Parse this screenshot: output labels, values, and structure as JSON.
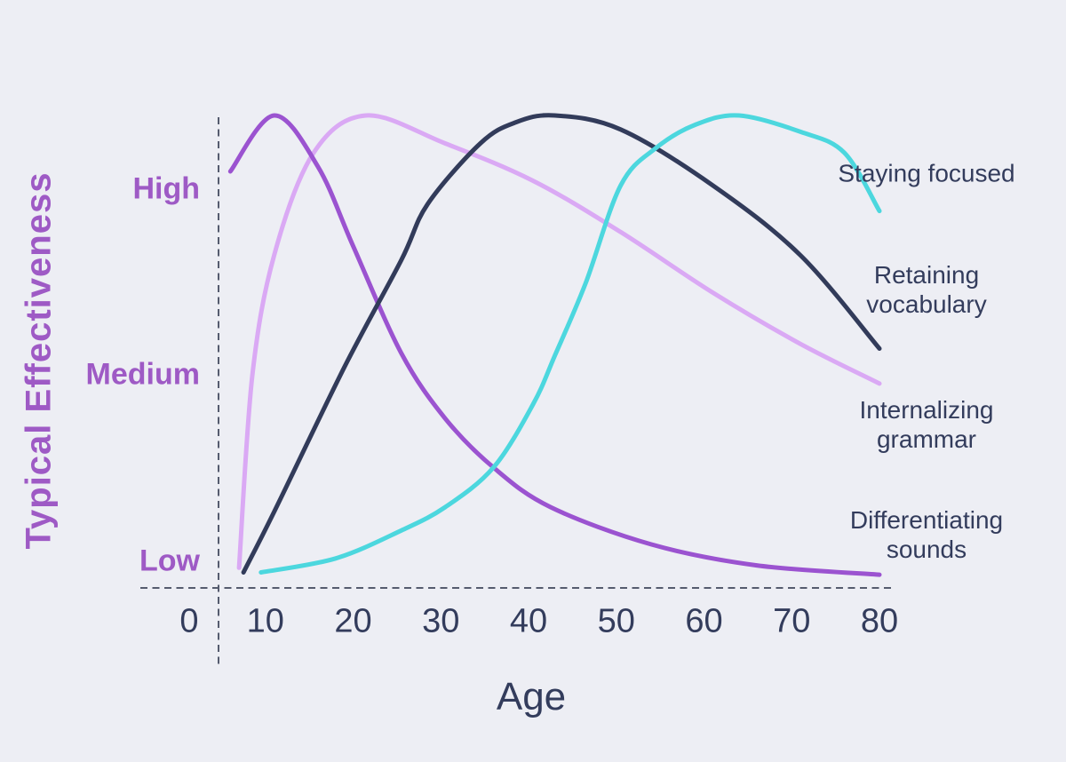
{
  "chart_data": {
    "type": "line",
    "title": "",
    "xlabel": "Age",
    "ylabel": "Typical Effectiveness",
    "x_ticks": [
      "0",
      "10",
      "20",
      "30",
      "40",
      "50",
      "60",
      "70",
      "80"
    ],
    "y_tick_labels": [
      "High",
      "Medium",
      "Low"
    ],
    "xlim": [
      0,
      80
    ],
    "ylim": [
      0,
      100
    ],
    "y_scale_note": "qualitative effectiveness, 0 = Low, 100 = High",
    "grid": false,
    "legend_position": "right-of-curves",
    "series": [
      {
        "name": "Differentiating sounds",
        "color": "#9b53d0",
        "points": [
          [
            6,
            88
          ],
          [
            11,
            100
          ],
          [
            16,
            89
          ],
          [
            20,
            72
          ],
          [
            25.5,
            49
          ],
          [
            30.5,
            35
          ],
          [
            36,
            24.5
          ],
          [
            42.5,
            16
          ],
          [
            54,
            8
          ],
          [
            66,
            3.5
          ],
          [
            80,
            1.5
          ]
        ]
      },
      {
        "name": "Internalizing grammar",
        "color": "#daa9f4",
        "points": [
          [
            7,
            3
          ],
          [
            8.5,
            44
          ],
          [
            11,
            70
          ],
          [
            15.5,
            92
          ],
          [
            21.5,
            100
          ],
          [
            30.5,
            94
          ],
          [
            40.5,
            86
          ],
          [
            50.5,
            75
          ],
          [
            61,
            62
          ],
          [
            71,
            51
          ],
          [
            80,
            42.5
          ]
        ]
      },
      {
        "name": "Retaining vocabulary",
        "color": "#323b5a",
        "points": [
          [
            7.5,
            2
          ],
          [
            11,
            15
          ],
          [
            19,
            46
          ],
          [
            25.5,
            69
          ],
          [
            28.5,
            81
          ],
          [
            34.5,
            94
          ],
          [
            38.5,
            98.5
          ],
          [
            43,
            100
          ],
          [
            50.5,
            97
          ],
          [
            61,
            85
          ],
          [
            71,
            70
          ],
          [
            80,
            50
          ]
        ]
      },
      {
        "name": "Staying focused",
        "color": "#4cd7de",
        "points": [
          [
            9.5,
            2
          ],
          [
            18,
            5
          ],
          [
            25.5,
            11
          ],
          [
            30.5,
            16
          ],
          [
            36,
            24.5
          ],
          [
            40.5,
            38
          ],
          [
            43,
            48.5
          ],
          [
            46.5,
            64
          ],
          [
            50.5,
            85
          ],
          [
            54.5,
            93
          ],
          [
            59,
            98
          ],
          [
            64,
            100
          ],
          [
            71,
            96.5
          ],
          [
            76,
            92
          ],
          [
            80,
            79.5
          ]
        ]
      }
    ]
  },
  "colors": {
    "background": "#edeef4",
    "y_axis_text": "#9e5ac5",
    "x_axis_text": "#333c5c",
    "annotation_text": "#333c5c",
    "axis_dash_line": "#555b6e"
  }
}
